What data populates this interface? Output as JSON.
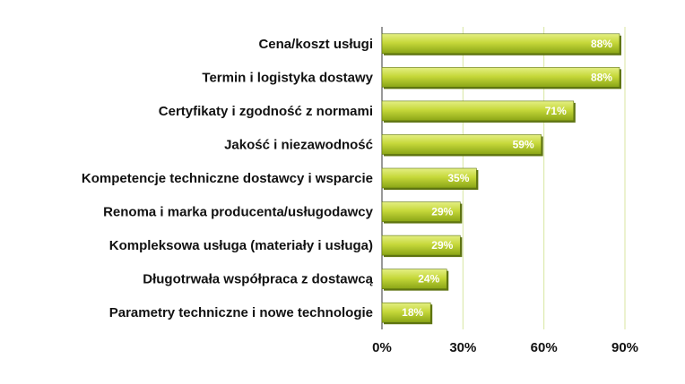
{
  "chart_data": {
    "type": "bar",
    "orientation": "horizontal",
    "categories": [
      "Cena/koszt usługi",
      "Termin i logistyka dostawy",
      "Certyfikaty i zgodność z normami",
      "Jakość i niezawodność",
      "Kompetencje techniczne dostawcy i wsparcie",
      "Renoma i marka producenta/usługodawcy",
      "Kompleksowa usługa (materiały i usługa)",
      "Długotrwała współpraca z dostawcą",
      "Parametry techniczne i nowe technologie"
    ],
    "values": [
      88,
      88,
      71,
      59,
      35,
      29,
      29,
      24,
      18
    ],
    "value_labels": [
      "88%",
      "88%",
      "71%",
      "59%",
      "35%",
      "29%",
      "29%",
      "24%",
      "18%"
    ],
    "xlim": [
      0,
      90
    ],
    "x_ticks": [
      0,
      30,
      60,
      90
    ],
    "x_tick_labels": [
      "0%",
      "30%",
      "60%",
      "90%"
    ],
    "grid": "vertical",
    "legend": "none",
    "colors": {
      "bar_light": "#d4e157",
      "bar_dark": "#8aa516",
      "bar_edge": "#5e7410",
      "grid": "#d8e6a0",
      "axis": "#333333"
    }
  }
}
